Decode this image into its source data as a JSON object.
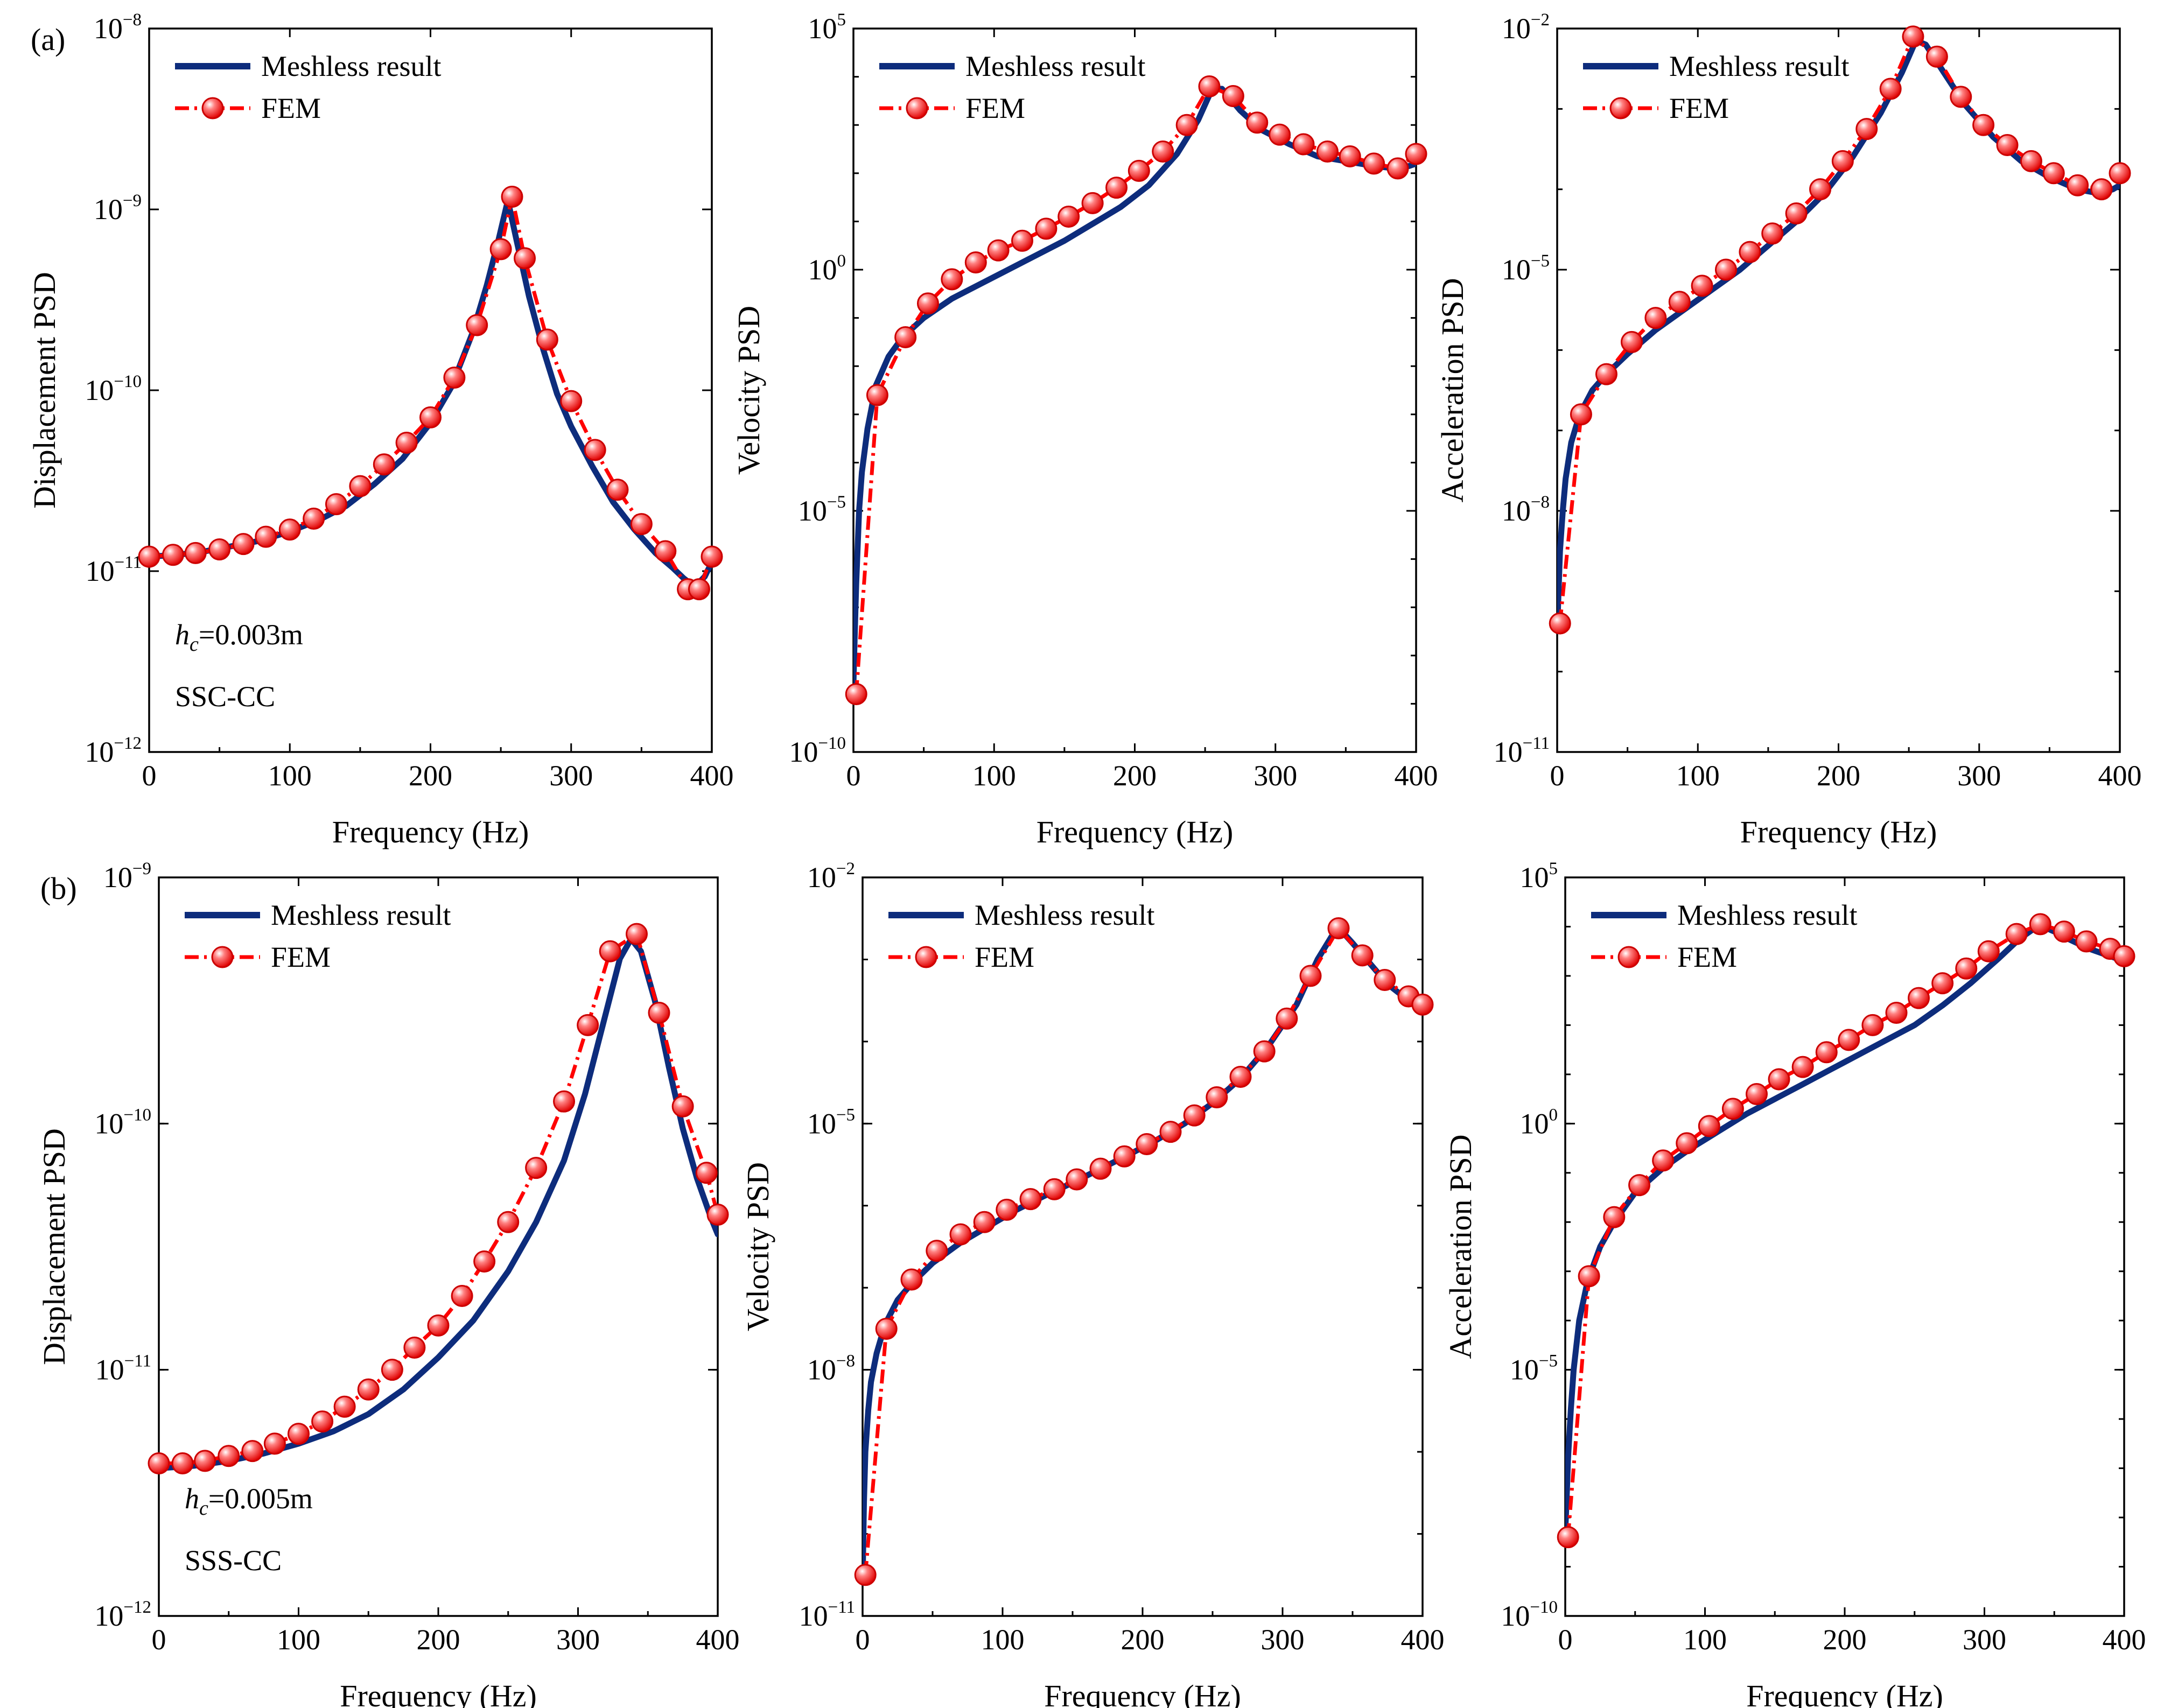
{
  "colors": {
    "meshless": "#0d2c7c",
    "fem": "#ff0000",
    "fem_marker_stroke": "#cc0000"
  },
  "chart_data": [
    {
      "type": "line",
      "panel_label": "(a)",
      "xlabel": "Frequency (Hz)",
      "ylabel": "Displacement PSD",
      "xlim": [
        0,
        400
      ],
      "xticks": [
        "0",
        "100",
        "200",
        "300",
        "400"
      ],
      "ylim_exp": [
        -12,
        -8
      ],
      "yscale": "log",
      "yticks": [
        {
          "base": "10",
          "exp": "−12"
        },
        {
          "base": "10",
          "exp": "−11"
        },
        {
          "base": "10",
          "exp": "−10"
        },
        {
          "base": "10",
          "exp": "−9"
        },
        {
          "base": "10",
          "exp": "−8"
        }
      ],
      "legend": {
        "position": "top-left",
        "entries": [
          "Meshless result",
          "FEM"
        ]
      },
      "annotation": {
        "h_main": "h",
        "h_sub": "c",
        "h_value": "=0.003m",
        "bc": "SSC-CC"
      },
      "series": [
        {
          "name": "Meshless result",
          "style": "solid",
          "x": [
            0,
            20,
            40,
            60,
            80,
            100,
            120,
            140,
            160,
            180,
            200,
            215,
            230,
            240,
            248,
            255,
            262,
            270,
            280,
            290,
            300,
            315,
            330,
            345,
            360,
            372,
            380,
            385,
            390,
            395,
            400
          ],
          "log10y": [
            -10.92,
            -10.91,
            -10.89,
            -10.86,
            -10.83,
            -10.78,
            -10.72,
            -10.64,
            -10.52,
            -10.38,
            -10.18,
            -9.98,
            -9.68,
            -9.42,
            -9.18,
            -8.95,
            -9.2,
            -9.48,
            -9.77,
            -10.02,
            -10.2,
            -10.42,
            -10.62,
            -10.77,
            -10.9,
            -10.98,
            -11.04,
            -11.07,
            -11.07,
            -11.03,
            -10.95
          ]
        },
        {
          "name": "FEM",
          "style": "dashdot",
          "x": [
            0,
            17,
            33,
            50,
            67,
            83,
            100,
            117,
            133,
            150,
            167,
            183,
            200,
            217,
            233,
            250,
            258,
            267,
            283,
            300,
            317,
            333,
            350,
            367,
            383,
            391,
            400
          ],
          "log10y": [
            -10.92,
            -10.91,
            -10.9,
            -10.88,
            -10.85,
            -10.81,
            -10.77,
            -10.71,
            -10.63,
            -10.53,
            -10.41,
            -10.29,
            -10.15,
            -9.93,
            -9.64,
            -9.22,
            -8.93,
            -9.27,
            -9.72,
            -10.06,
            -10.33,
            -10.55,
            -10.74,
            -10.89,
            -11.1,
            -11.1,
            -10.92
          ]
        }
      ]
    },
    {
      "type": "line",
      "panel_label": "",
      "xlabel": "Frequency (Hz)",
      "ylabel": "Velocity PSD",
      "xlim": [
        0,
        400
      ],
      "xticks": [
        "0",
        "100",
        "200",
        "300",
        "400"
      ],
      "ylim_exp": [
        -10,
        5
      ],
      "yscale": "log",
      "yticks": [
        {
          "base": "10",
          "exp": "−10"
        },
        {
          "base": "10",
          "exp": "−5"
        },
        {
          "base": "10",
          "exp": "0"
        },
        {
          "base": "10",
          "exp": "5"
        }
      ],
      "legend": {
        "position": "top-left",
        "entries": [
          "Meshless result",
          "FEM"
        ]
      },
      "series": [
        {
          "name": "Meshless result",
          "style": "solid",
          "x": [
            0,
            1,
            2,
            4,
            6,
            10,
            16,
            25,
            35,
            50,
            70,
            90,
            110,
            130,
            150,
            170,
            190,
            210,
            230,
            245,
            255,
            262,
            275,
            290,
            310,
            330,
            350,
            370,
            385,
            395,
            400
          ],
          "log10y": [
            -8.6,
            -7.5,
            -6.5,
            -5.0,
            -4.2,
            -3.3,
            -2.4,
            -1.8,
            -1.4,
            -1.0,
            -0.6,
            -0.3,
            0.0,
            0.3,
            0.6,
            0.95,
            1.3,
            1.75,
            2.4,
            3.1,
            3.75,
            3.75,
            3.3,
            2.9,
            2.6,
            2.35,
            2.25,
            2.15,
            2.1,
            2.15,
            2.2
          ]
        },
        {
          "name": "FEM",
          "style": "dashdot",
          "x": [
            2,
            17,
            37,
            53,
            70,
            87,
            103,
            120,
            137,
            153,
            170,
            187,
            203,
            220,
            237,
            253,
            270,
            287,
            303,
            320,
            337,
            353,
            370,
            387,
            400
          ],
          "log10y": [
            -8.8,
            -2.6,
            -1.4,
            -0.7,
            -0.2,
            0.15,
            0.4,
            0.6,
            0.85,
            1.1,
            1.38,
            1.7,
            2.05,
            2.45,
            3.0,
            3.8,
            3.6,
            3.05,
            2.8,
            2.6,
            2.45,
            2.35,
            2.2,
            2.1,
            2.4
          ]
        }
      ]
    },
    {
      "type": "line",
      "panel_label": "",
      "xlabel": "Frequency (Hz)",
      "ylabel": "Acceleration PSD",
      "xlim": [
        0,
        400
      ],
      "xticks": [
        "0",
        "100",
        "200",
        "300",
        "400"
      ],
      "ylim_exp": [
        -11,
        -2
      ],
      "yscale": "log",
      "yticks": [
        {
          "base": "10",
          "exp": "−11"
        },
        {
          "base": "10",
          "exp": "−8"
        },
        {
          "base": "10",
          "exp": "−5"
        },
        {
          "base": "10",
          "exp": "−2"
        }
      ],
      "legend": {
        "position": "top-left",
        "entries": [
          "Meshless result",
          "FEM"
        ]
      },
      "series": [
        {
          "name": "Meshless result",
          "style": "solid",
          "x": [
            0,
            1,
            2,
            4,
            6,
            10,
            16,
            25,
            35,
            50,
            70,
            90,
            110,
            130,
            150,
            170,
            190,
            210,
            230,
            245,
            255,
            262,
            275,
            290,
            310,
            330,
            350,
            370,
            385,
            395,
            400
          ],
          "log10y": [
            -9.5,
            -9.0,
            -8.5,
            -8.0,
            -7.6,
            -7.15,
            -6.8,
            -6.5,
            -6.3,
            -6.05,
            -5.75,
            -5.5,
            -5.25,
            -5.0,
            -4.7,
            -4.4,
            -4.05,
            -3.6,
            -3.05,
            -2.55,
            -2.15,
            -2.2,
            -2.55,
            -2.95,
            -3.35,
            -3.65,
            -3.85,
            -4.0,
            -4.05,
            -4.0,
            -3.95
          ]
        },
        {
          "name": "FEM",
          "style": "dashdot",
          "x": [
            2,
            17,
            35,
            53,
            70,
            87,
            103,
            120,
            137,
            153,
            170,
            187,
            203,
            220,
            237,
            253,
            270,
            287,
            303,
            320,
            337,
            353,
            370,
            387,
            400
          ],
          "log10y": [
            -9.4,
            -6.8,
            -6.3,
            -5.9,
            -5.6,
            -5.4,
            -5.2,
            -5.0,
            -4.78,
            -4.55,
            -4.3,
            -4.0,
            -3.65,
            -3.25,
            -2.75,
            -2.1,
            -2.35,
            -2.85,
            -3.2,
            -3.45,
            -3.65,
            -3.8,
            -3.95,
            -4.0,
            -3.8
          ]
        }
      ]
    },
    {
      "type": "line",
      "panel_label": "(b)",
      "xlabel": "Frequency (Hz)",
      "ylabel": "Displacement PSD",
      "xlim": [
        0,
        400
      ],
      "xticks": [
        "0",
        "100",
        "200",
        "300",
        "400"
      ],
      "ylim_exp": [
        -12,
        -9
      ],
      "yscale": "log",
      "yticks": [
        {
          "base": "10",
          "exp": "−12"
        },
        {
          "base": "10",
          "exp": "−11"
        },
        {
          "base": "10",
          "exp": "−10"
        },
        {
          "base": "10",
          "exp": "−9"
        }
      ],
      "legend": {
        "position": "top-left",
        "entries": [
          "Meshless result",
          "FEM"
        ]
      },
      "annotation": {
        "h_main": "h",
        "h_sub": "c",
        "h_value": "=0.005m",
        "bc": "SSS-CC"
      },
      "series": [
        {
          "name": "Meshless result",
          "style": "solid",
          "x": [
            0,
            25,
            50,
            75,
            100,
            125,
            150,
            175,
            200,
            225,
            250,
            270,
            290,
            305,
            320,
            330,
            338,
            345,
            355,
            365,
            375,
            385,
            395,
            400
          ],
          "log10y": [
            -11.4,
            -11.39,
            -11.37,
            -11.34,
            -11.3,
            -11.25,
            -11.18,
            -11.08,
            -10.95,
            -10.8,
            -10.6,
            -10.4,
            -10.15,
            -9.88,
            -9.55,
            -9.33,
            -9.25,
            -9.3,
            -9.5,
            -9.77,
            -10.02,
            -10.22,
            -10.38,
            -10.45
          ]
        },
        {
          "name": "FEM",
          "style": "dashdot",
          "x": [
            0,
            17,
            33,
            50,
            67,
            83,
            100,
            117,
            133,
            150,
            167,
            183,
            200,
            217,
            233,
            250,
            270,
            290,
            307,
            323,
            342,
            358,
            375,
            392,
            400
          ],
          "log10y": [
            -11.38,
            -11.38,
            -11.37,
            -11.35,
            -11.33,
            -11.3,
            -11.26,
            -11.21,
            -11.15,
            -11.08,
            -11.0,
            -10.91,
            -10.82,
            -10.7,
            -10.56,
            -10.4,
            -10.18,
            -9.91,
            -9.6,
            -9.3,
            -9.23,
            -9.55,
            -9.93,
            -10.2,
            -10.37
          ]
        }
      ]
    },
    {
      "type": "line",
      "panel_label": "",
      "xlabel": "Frequency (Hz)",
      "ylabel": "Velocity PSD",
      "xlim": [
        0,
        400
      ],
      "xticks": [
        "0",
        "100",
        "200",
        "300",
        "400"
      ],
      "ylim_exp": [
        -11,
        -2
      ],
      "yscale": "log",
      "yticks": [
        {
          "base": "10",
          "exp": "−11"
        },
        {
          "base": "10",
          "exp": "−8"
        },
        {
          "base": "10",
          "exp": "−5"
        },
        {
          "base": "10",
          "exp": "−2"
        }
      ],
      "legend": {
        "position": "top-left",
        "entries": [
          "Meshless result",
          "FEM"
        ]
      },
      "series": [
        {
          "name": "Meshless result",
          "style": "solid",
          "x": [
            0,
            1,
            2,
            4,
            6,
            10,
            16,
            25,
            35,
            50,
            70,
            90,
            110,
            130,
            150,
            170,
            190,
            210,
            230,
            250,
            270,
            290,
            310,
            325,
            335,
            342,
            350,
            360,
            375,
            390,
            400
          ],
          "log10y": [
            -10.6,
            -9.6,
            -9.0,
            -8.5,
            -8.15,
            -7.8,
            -7.45,
            -7.15,
            -6.95,
            -6.7,
            -6.45,
            -6.25,
            -6.05,
            -5.88,
            -5.72,
            -5.55,
            -5.38,
            -5.2,
            -5.0,
            -4.75,
            -4.45,
            -4.05,
            -3.55,
            -3.0,
            -2.72,
            -2.65,
            -2.8,
            -3.0,
            -3.3,
            -3.5,
            -3.6
          ]
        },
        {
          "name": "FEM",
          "style": "dashdot",
          "x": [
            2,
            17,
            35,
            53,
            70,
            87,
            103,
            120,
            137,
            153,
            170,
            187,
            203,
            220,
            237,
            253,
            270,
            287,
            303,
            320,
            340,
            357,
            373,
            390,
            400
          ],
          "log10y": [
            -10.5,
            -7.5,
            -6.9,
            -6.55,
            -6.35,
            -6.2,
            -6.05,
            -5.92,
            -5.8,
            -5.68,
            -5.55,
            -5.4,
            -5.25,
            -5.1,
            -4.9,
            -4.68,
            -4.43,
            -4.12,
            -3.72,
            -3.2,
            -2.62,
            -2.95,
            -3.25,
            -3.45,
            -3.55
          ]
        }
      ]
    },
    {
      "type": "line",
      "panel_label": "",
      "xlabel": "Frequency (Hz)",
      "ylabel": "Acceleration PSD",
      "xlim": [
        0,
        400
      ],
      "xticks": [
        "0",
        "100",
        "200",
        "300",
        "400"
      ],
      "ylim_exp": [
        -10,
        5
      ],
      "yscale": "log",
      "yticks": [
        {
          "base": "10",
          "exp": "−10"
        },
        {
          "base": "10",
          "exp": "−5"
        },
        {
          "base": "10",
          "exp": "0"
        },
        {
          "base": "10",
          "exp": "5"
        }
      ],
      "legend": {
        "position": "top-left",
        "entries": [
          "Meshless result",
          "FEM"
        ]
      },
      "series": [
        {
          "name": "Meshless result",
          "style": "solid",
          "x": [
            0,
            1,
            2,
            4,
            6,
            10,
            16,
            25,
            35,
            50,
            70,
            90,
            110,
            130,
            150,
            170,
            190,
            210,
            230,
            250,
            270,
            290,
            310,
            325,
            335,
            342,
            350,
            360,
            375,
            390,
            400
          ],
          "log10y": [
            -8.3,
            -7.6,
            -6.8,
            -5.8,
            -5.0,
            -4.0,
            -3.2,
            -2.5,
            -2.0,
            -1.4,
            -0.9,
            -0.5,
            -0.15,
            0.2,
            0.5,
            0.8,
            1.1,
            1.4,
            1.7,
            2.0,
            2.4,
            2.85,
            3.35,
            3.75,
            3.95,
            4.0,
            3.9,
            3.75,
            3.55,
            3.4,
            3.3
          ]
        },
        {
          "name": "FEM",
          "style": "dashdot",
          "x": [
            2,
            17,
            35,
            53,
            70,
            87,
            103,
            120,
            137,
            153,
            170,
            187,
            203,
            220,
            237,
            253,
            270,
            287,
            303,
            323,
            340,
            357,
            373,
            390,
            400
          ],
          "log10y": [
            -8.4,
            -3.1,
            -1.9,
            -1.25,
            -0.75,
            -0.4,
            -0.05,
            0.3,
            0.6,
            0.9,
            1.15,
            1.45,
            1.7,
            2.0,
            2.25,
            2.55,
            2.85,
            3.15,
            3.5,
            3.85,
            4.05,
            3.9,
            3.7,
            3.55,
            3.4
          ]
        }
      ]
    }
  ]
}
